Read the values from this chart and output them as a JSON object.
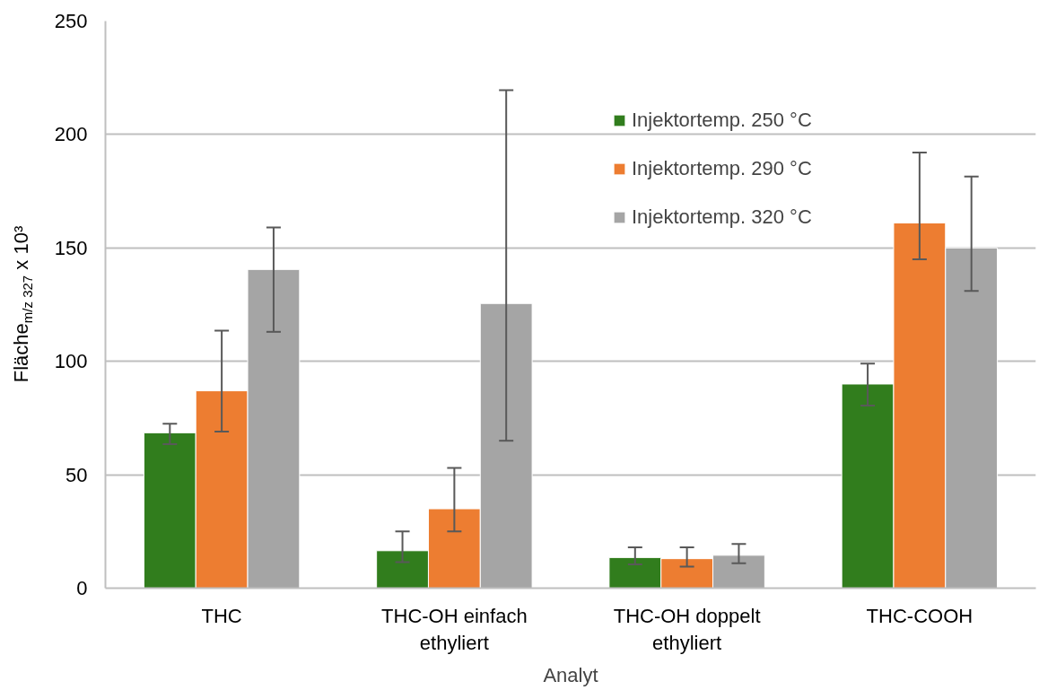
{
  "chart_data": {
    "type": "bar",
    "xlabel": "Analyt",
    "ylabel": "Fläche$_{m/z 327}$ x 10³",
    "categories": [
      "THC",
      "THC-OH einfach ethyliert",
      "THC-OH doppelt ethyliert",
      "THC-COOH"
    ],
    "series": [
      {
        "name": "Injektortemp. 250 °C",
        "color": "#317d1d",
        "values": [
          68.5,
          16.5,
          13.5,
          90
        ],
        "errors": [
          [
            63.5,
            72.5
          ],
          [
            11.5,
            25
          ],
          [
            10.5,
            18
          ],
          [
            80.5,
            99
          ]
        ]
      },
      {
        "name": "Injektortemp. 290 °C",
        "color": "#ed7d31",
        "values": [
          87,
          35,
          13,
          161
        ],
        "errors": [
          [
            69,
            113.5
          ],
          [
            25,
            53
          ],
          [
            9.5,
            18
          ],
          [
            145,
            192
          ]
        ]
      },
      {
        "name": "Injektortemp. 320 °C",
        "color": "#a5a5a5",
        "values": [
          140.5,
          125.5,
          14.5,
          150
        ],
        "errors": [
          [
            113,
            159
          ],
          [
            65,
            219.5
          ],
          [
            11,
            19.5
          ],
          [
            131,
            181.5
          ]
        ]
      }
    ],
    "ylim": [
      0,
      250
    ],
    "yticks": [
      0,
      50,
      100,
      150,
      200,
      250
    ],
    "grid": "y",
    "legend": "top right"
  }
}
